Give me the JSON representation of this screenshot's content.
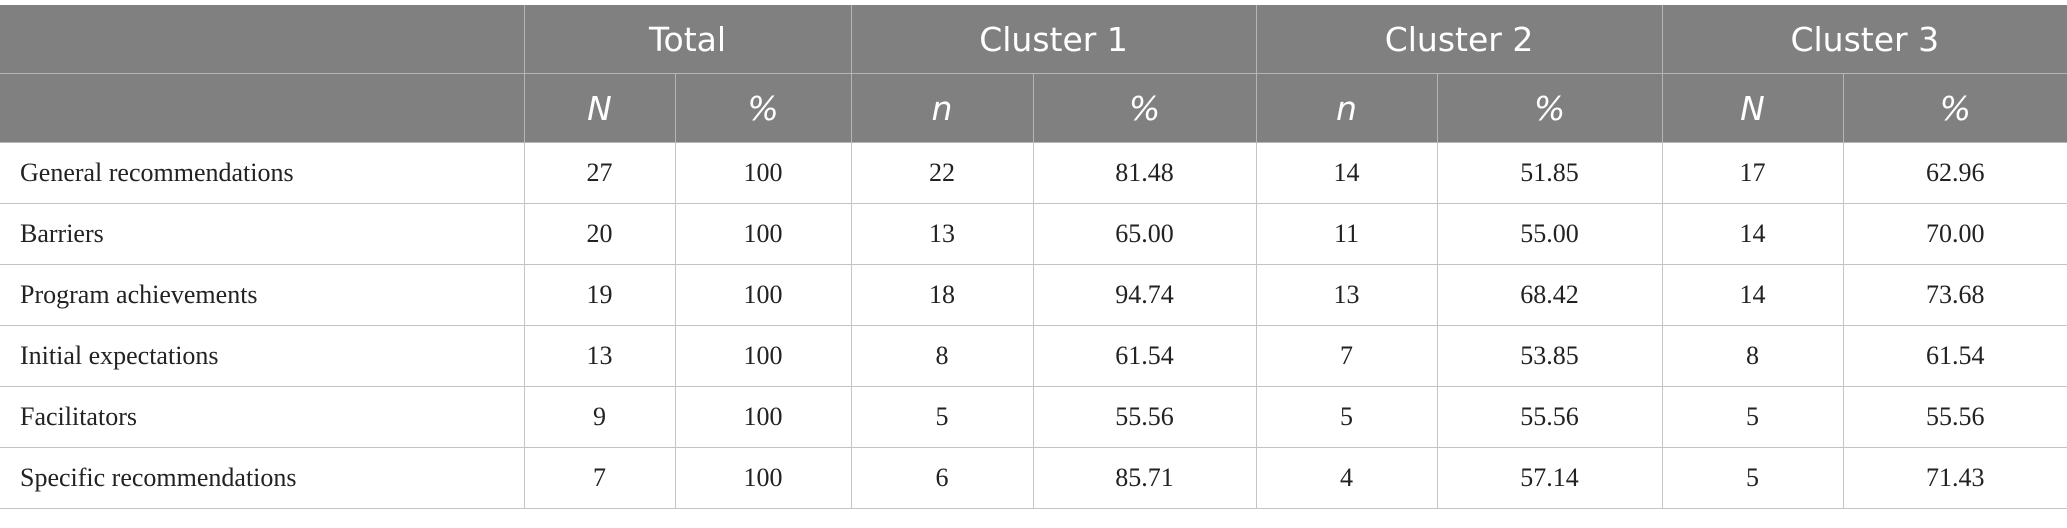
{
  "header": {
    "groups": [
      "",
      "Total",
      "Cluster 1",
      "Cluster 2",
      "Cluster 3"
    ],
    "subheaders": [
      "",
      "N",
      "%",
      "n",
      "%",
      "n",
      "%",
      "N",
      "%"
    ]
  },
  "rows": [
    {
      "label": "General recommendations",
      "values": [
        "27",
        "100",
        "22",
        "81.48",
        "14",
        "51.85",
        "17",
        "62.96"
      ]
    },
    {
      "label": "Barriers",
      "values": [
        "20",
        "100",
        "13",
        "65.00",
        "11",
        "55.00",
        "14",
        "70.00"
      ]
    },
    {
      "label": "Program achievements",
      "values": [
        "19",
        "100",
        "18",
        "94.74",
        "13",
        "68.42",
        "14",
        "73.68"
      ]
    },
    {
      "label": "Initial expectations",
      "values": [
        "13",
        "100",
        "8",
        "61.54",
        "7",
        "53.85",
        "8",
        "61.54"
      ]
    },
    {
      "label": "Facilitators",
      "values": [
        "9",
        "100",
        "5",
        "55.56",
        "5",
        "55.56",
        "5",
        "55.56"
      ]
    },
    {
      "label": "Specific recommendations",
      "values": [
        "7",
        "100",
        "6",
        "85.71",
        "4",
        "57.14",
        "5",
        "71.43"
      ]
    }
  ],
  "colors": {
    "header_bg": "#808080",
    "header_text": "#ffffff",
    "grid": "#c4c4c4"
  }
}
